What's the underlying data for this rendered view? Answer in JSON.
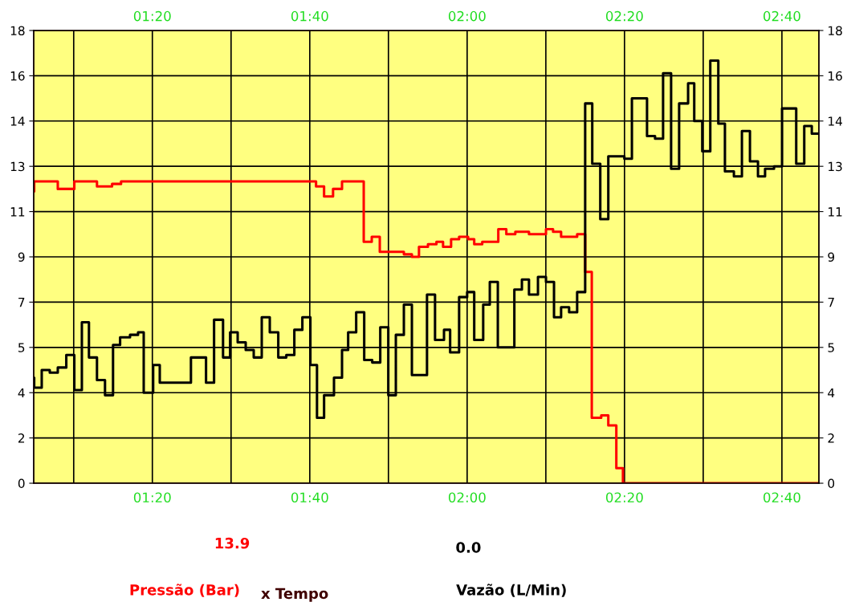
{
  "chart_data": {
    "type": "step",
    "series": [
      {
        "name": "Pressão (Bar)",
        "color": "#ff0000",
        "x": [
          1.082,
          1.083,
          1.133,
          1.168,
          1.216,
          1.248,
          1.267,
          1.68,
          1.697,
          1.716,
          1.735,
          1.781,
          1.798,
          1.815,
          1.866,
          1.883,
          1.898,
          1.917,
          1.935,
          1.949,
          1.966,
          1.983,
          2.002,
          2.015,
          2.032,
          2.066,
          2.083,
          2.102,
          2.117,
          2.131,
          2.167,
          2.182,
          2.199,
          2.218,
          2.233,
          2.25,
          2.264,
          2.284,
          2.299,
          2.316,
          2.33,
          2.745
        ],
        "values": [
          11.6,
          12.0,
          11.7,
          12.0,
          11.8,
          11.9,
          12.0,
          11.8,
          11.4,
          11.7,
          12.0,
          9.6,
          9.8,
          9.2,
          9.1,
          9.0,
          9.4,
          9.5,
          9.6,
          9.4,
          9.7,
          9.8,
          9.7,
          9.5,
          9.6,
          10.1,
          9.9,
          10.0,
          10.0,
          9.9,
          10.1,
          10.0,
          9.8,
          9.8,
          9.9,
          8.4,
          2.6,
          2.7,
          2.3,
          0.6,
          0,
          0
        ]
      },
      {
        "name": "Vazão (L/Min)",
        "color": "#000000",
        "x": [
          1.082,
          1.083,
          1.099,
          1.116,
          1.133,
          1.151,
          1.168,
          1.184,
          1.199,
          1.216,
          1.233,
          1.25,
          1.265,
          1.286,
          1.303,
          1.315,
          1.335,
          1.349,
          1.415,
          1.447,
          1.464,
          1.483,
          1.498,
          1.514,
          1.531,
          1.548,
          1.565,
          1.582,
          1.6,
          1.617,
          1.634,
          1.651,
          1.668,
          1.682,
          1.697,
          1.718,
          1.735,
          1.748,
          1.765,
          1.782,
          1.799,
          1.816,
          1.833,
          1.849,
          1.866,
          1.883,
          1.9,
          1.915,
          1.932,
          1.951,
          1.964,
          1.983,
          2.0,
          2.015,
          2.034,
          2.048,
          2.065,
          2.1,
          2.116,
          2.131,
          2.15,
          2.167,
          2.184,
          2.199,
          2.216,
          2.233,
          2.25,
          2.265,
          2.282,
          2.299,
          2.333,
          2.349,
          2.381,
          2.398,
          2.415,
          2.432,
          2.449,
          2.468,
          2.481,
          2.498,
          2.515,
          2.532,
          2.546,
          2.565,
          2.582,
          2.599,
          2.616,
          2.631,
          2.65,
          2.667,
          2.697,
          2.714,
          2.73,
          2.745
        ],
        "values": [
          4.2,
          3.8,
          4.5,
          4.4,
          4.6,
          5.1,
          3.7,
          6.4,
          5.0,
          4.1,
          3.5,
          5.5,
          5.8,
          5.9,
          6.0,
          3.6,
          4.7,
          4.0,
          5.0,
          4.0,
          6.5,
          5.0,
          6.0,
          5.6,
          5.3,
          5.0,
          6.6,
          6.0,
          5.0,
          5.1,
          6.1,
          6.6,
          4.7,
          2.6,
          3.5,
          4.2,
          5.3,
          6.0,
          6.8,
          4.9,
          4.8,
          6.2,
          3.5,
          5.9,
          7.1,
          4.3,
          4.3,
          7.5,
          5.7,
          6.1,
          5.2,
          7.4,
          7.6,
          5.7,
          7.1,
          8.0,
          5.4,
          7.7,
          8.1,
          7.5,
          8.2,
          8.0,
          6.6,
          7.0,
          6.8,
          7.6,
          15.1,
          12.7,
          10.5,
          13.0,
          12.9,
          15.3,
          13.8,
          13.7,
          16.3,
          12.5,
          15.1,
          15.9,
          14.4,
          13.2,
          16.8,
          14.3,
          12.4,
          12.2,
          14.0,
          12.8,
          12.2,
          12.5,
          12.6,
          14.9,
          12.7,
          14.2,
          13.9,
          13.9
        ]
      }
    ],
    "xlim": [
      1.082,
      2.745
    ],
    "xticks": [
      {
        "value": 1.1667,
        "label": null
      },
      {
        "value": 1.3333,
        "label": "01:20"
      },
      {
        "value": 1.5,
        "label": null
      },
      {
        "value": 1.6667,
        "label": "01:40"
      },
      {
        "value": 1.8333,
        "label": null
      },
      {
        "value": 2.0,
        "label": "02:00"
      },
      {
        "value": 2.1667,
        "label": null
      },
      {
        "value": 2.3333,
        "label": "02:20"
      },
      {
        "value": 2.5,
        "label": null
      },
      {
        "value": 2.6667,
        "label": "02:40"
      }
    ],
    "x2lim": [
      1.082,
      2.745
    ],
    "x2ticks": [
      {
        "value": 1.1667,
        "label": null
      },
      {
        "value": 1.3333,
        "label": "01:20"
      },
      {
        "value": 1.5,
        "label": null
      },
      {
        "value": 1.6667,
        "label": "01:40"
      },
      {
        "value": 1.8333,
        "label": null
      },
      {
        "value": 2.0,
        "label": "02:00"
      },
      {
        "value": 2.1667,
        "label": null
      },
      {
        "value": 2.3333,
        "label": "02:20"
      },
      {
        "value": 2.5,
        "label": null
      },
      {
        "value": 2.6667,
        "label": "02:40"
      }
    ],
    "ylim": [
      0,
      18
    ],
    "yticks": [
      0,
      {
        "value": 1.8,
        "label": "2"
      },
      {
        "value": 3.6,
        "label": "4"
      },
      {
        "value": 5.4,
        "label": "5"
      },
      {
        "value": 7.2,
        "label": "7"
      },
      9,
      {
        "value": 10.8,
        "label": "11"
      },
      {
        "value": 12.6,
        "label": "13"
      },
      {
        "value": 14.4,
        "label": "14"
      },
      {
        "value": 16.2,
        "label": "16"
      },
      18
    ],
    "y2lim": [
      0,
      18
    ],
    "y2ticks": [
      0,
      {
        "value": 1.8,
        "label": "2"
      },
      {
        "value": 3.6,
        "label": "4"
      },
      {
        "value": 5.4,
        "label": "5"
      },
      {
        "value": 7.2,
        "label": "7"
      },
      9,
      {
        "value": 10.8,
        "label": "11"
      },
      {
        "value": 12.6,
        "label": "13"
      },
      {
        "value": 14.4,
        "label": "14"
      },
      {
        "value": 16.2,
        "label": "16"
      },
      18
    ],
    "grid": true,
    "legend": "bottom",
    "annotations": [
      "13.9",
      "0.0",
      "x Tempo"
    ]
  }
}
